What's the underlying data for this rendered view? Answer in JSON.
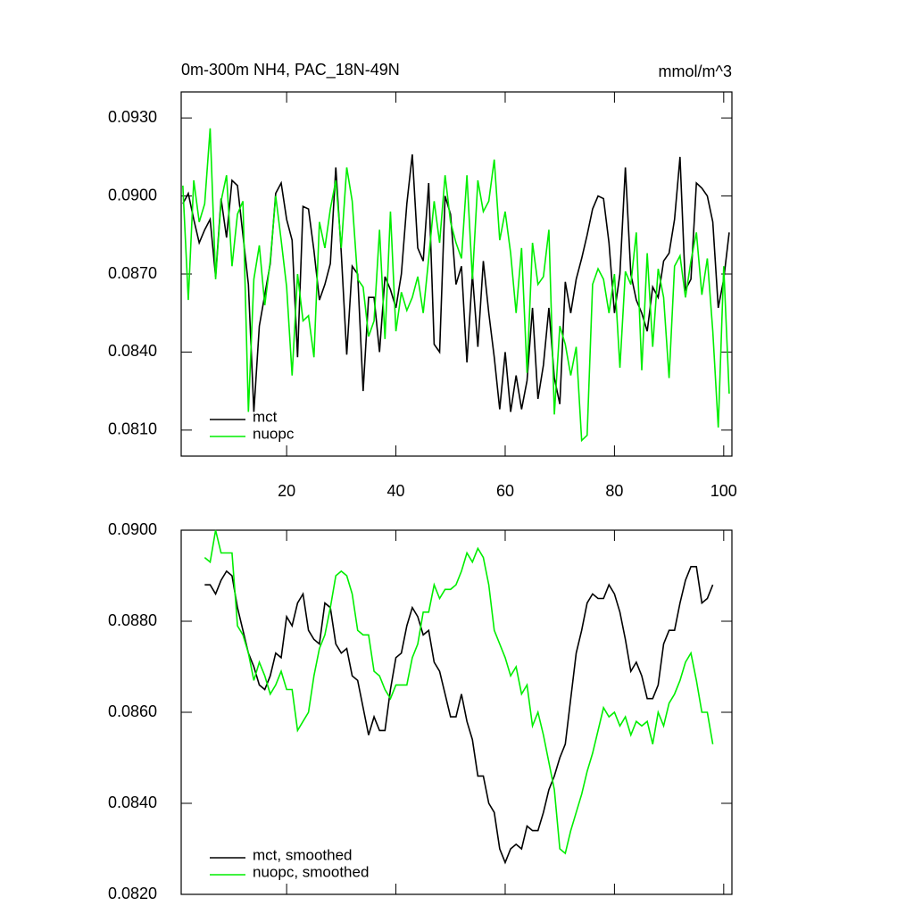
{
  "chart_data": [
    {
      "type": "line",
      "title": "0m-300m NH4, PAC_18N-49N",
      "units": "mmol/m^3",
      "x": [
        1,
        2,
        3,
        4,
        5,
        6,
        7,
        8,
        9,
        10,
        11,
        12,
        13,
        14,
        15,
        16,
        17,
        18,
        19,
        20,
        21,
        22,
        23,
        24,
        25,
        26,
        27,
        28,
        29,
        30,
        31,
        32,
        33,
        34,
        35,
        36,
        37,
        38,
        39,
        40,
        41,
        42,
        43,
        44,
        45,
        46,
        47,
        48,
        49,
        50,
        51,
        52,
        53,
        54,
        55,
        56,
        57,
        58,
        59,
        60,
        61,
        62,
        63,
        64,
        65,
        66,
        67,
        68,
        69,
        70,
        71,
        72,
        73,
        74,
        75,
        76,
        77,
        78,
        79,
        80,
        81,
        82,
        83,
        84,
        85,
        86,
        87,
        88,
        89,
        90,
        91,
        92,
        93,
        94,
        95,
        96,
        97,
        98,
        99,
        100,
        101
      ],
      "series": [
        {
          "name": "mct",
          "color": "#000000",
          "values": [
            0.0897,
            0.0901,
            0.0891,
            0.0882,
            0.0887,
            0.0891,
            0.0869,
            0.0899,
            0.0884,
            0.0906,
            0.0904,
            0.0885,
            0.0866,
            0.0817,
            0.085,
            0.0862,
            0.0874,
            0.0901,
            0.0905,
            0.0891,
            0.0883,
            0.0838,
            0.0896,
            0.0895,
            0.0879,
            0.086,
            0.0866,
            0.0874,
            0.0911,
            0.0878,
            0.0839,
            0.0873,
            0.087,
            0.0825,
            0.0861,
            0.0861,
            0.084,
            0.0869,
            0.0864,
            0.0857,
            0.087,
            0.0897,
            0.0916,
            0.088,
            0.0875,
            0.0905,
            0.0843,
            0.084,
            0.09,
            0.0893,
            0.0866,
            0.0873,
            0.0836,
            0.087,
            0.0842,
            0.0875,
            0.0855,
            0.0838,
            0.0818,
            0.084,
            0.0817,
            0.0831,
            0.0818,
            0.0829,
            0.0857,
            0.0822,
            0.0835,
            0.0857,
            0.083,
            0.082,
            0.0867,
            0.0855,
            0.0868,
            0.0876,
            0.0885,
            0.0895,
            0.09,
            0.0899,
            0.0882,
            0.0855,
            0.087,
            0.0911,
            0.087,
            0.086,
            0.0855,
            0.0848,
            0.0865,
            0.0861,
            0.0875,
            0.0878,
            0.0891,
            0.0915,
            0.0864,
            0.0868,
            0.0905,
            0.0903,
            0.09,
            0.089,
            0.0857,
            0.0868,
            0.0886
          ]
        },
        {
          "name": "nuopc",
          "color": "#00ee00",
          "values": [
            0.0904,
            0.086,
            0.0906,
            0.089,
            0.0897,
            0.0926,
            0.0868,
            0.0898,
            0.0908,
            0.0873,
            0.0893,
            0.0898,
            0.0817,
            0.0868,
            0.0881,
            0.0858,
            0.0875,
            0.09,
            0.0883,
            0.0865,
            0.0831,
            0.087,
            0.0852,
            0.0854,
            0.0838,
            0.089,
            0.088,
            0.0895,
            0.0906,
            0.088,
            0.0911,
            0.0898,
            0.0868,
            0.0865,
            0.0846,
            0.0852,
            0.0887,
            0.0845,
            0.0894,
            0.0848,
            0.0863,
            0.0856,
            0.0861,
            0.0869,
            0.0855,
            0.0876,
            0.0898,
            0.0882,
            0.0908,
            0.089,
            0.0882,
            0.0876,
            0.0908,
            0.0868,
            0.0906,
            0.0894,
            0.0898,
            0.0914,
            0.0883,
            0.0894,
            0.0878,
            0.0855,
            0.088,
            0.0832,
            0.0882,
            0.0866,
            0.0869,
            0.0887,
            0.0816,
            0.085,
            0.0843,
            0.0831,
            0.0842,
            0.0806,
            0.0808,
            0.0866,
            0.0872,
            0.0868,
            0.0855,
            0.087,
            0.0834,
            0.0871,
            0.0866,
            0.0886,
            0.0833,
            0.0878,
            0.0842,
            0.0872,
            0.0861,
            0.083,
            0.0873,
            0.0877,
            0.0861,
            0.0875,
            0.0886,
            0.0862,
            0.0876,
            0.0848,
            0.0811,
            0.0873,
            0.0824
          ]
        }
      ],
      "xlim": [
        0.7,
        101.5
      ],
      "xticks": [
        20,
        40,
        60,
        80,
        100
      ],
      "show_xtick_labels": true,
      "ylim": [
        0.08,
        0.094
      ],
      "yticks": [
        {
          "value": 0.081,
          "label": "0.0810"
        },
        {
          "value": 0.084,
          "label": "0.0840"
        },
        {
          "value": 0.087,
          "label": "0.0870"
        },
        {
          "value": 0.09,
          "label": "0.0900"
        },
        {
          "value": 0.093,
          "label": "0.0930"
        }
      ],
      "legend_loc": "lower left"
    },
    {
      "type": "line",
      "x": [
        5,
        6,
        7,
        8,
        9,
        10,
        11,
        12,
        13,
        14,
        15,
        16,
        17,
        18,
        19,
        20,
        21,
        22,
        23,
        24,
        25,
        26,
        27,
        28,
        29,
        30,
        31,
        32,
        33,
        34,
        35,
        36,
        37,
        38,
        39,
        40,
        41,
        42,
        43,
        44,
        45,
        46,
        47,
        48,
        49,
        50,
        51,
        52,
        53,
        54,
        55,
        56,
        57,
        58,
        59,
        60,
        61,
        62,
        63,
        64,
        65,
        66,
        67,
        68,
        69,
        70,
        71,
        72,
        73,
        74,
        75,
        76,
        77,
        78,
        79,
        80,
        81,
        82,
        83,
        84,
        85,
        86,
        87,
        88,
        89,
        90,
        91,
        92,
        93,
        94,
        95,
        96,
        97,
        98
      ],
      "series": [
        {
          "name": "mct, smoothed",
          "color": "#000000",
          "values": [
            0.0888,
            0.0888,
            0.0886,
            0.0889,
            0.0891,
            0.089,
            0.0883,
            0.0878,
            0.0873,
            0.087,
            0.0866,
            0.0865,
            0.0868,
            0.0873,
            0.0872,
            0.0881,
            0.0879,
            0.0884,
            0.0886,
            0.0878,
            0.0876,
            0.0875,
            0.0884,
            0.0883,
            0.0875,
            0.0873,
            0.0874,
            0.0868,
            0.0867,
            0.0861,
            0.0855,
            0.0859,
            0.0856,
            0.0856,
            0.0865,
            0.0872,
            0.0873,
            0.0879,
            0.0883,
            0.0881,
            0.0877,
            0.0878,
            0.0871,
            0.0869,
            0.0864,
            0.0859,
            0.0859,
            0.0864,
            0.0858,
            0.0854,
            0.0846,
            0.0846,
            0.084,
            0.0838,
            0.083,
            0.0827,
            0.083,
            0.0831,
            0.083,
            0.0835,
            0.0834,
            0.0834,
            0.0838,
            0.0843,
            0.0846,
            0.085,
            0.0853,
            0.0863,
            0.0873,
            0.0878,
            0.0884,
            0.0886,
            0.0885,
            0.0885,
            0.0888,
            0.0886,
            0.0882,
            0.0876,
            0.0869,
            0.0871,
            0.0868,
            0.0863,
            0.0863,
            0.0866,
            0.0875,
            0.0878,
            0.0878,
            0.0884,
            0.0889,
            0.0892,
            0.0892,
            0.0884,
            0.0885,
            0.0888
          ]
        },
        {
          "name": "nuopc, smoothed",
          "color": "#00ee00",
          "values": [
            0.0894,
            0.0893,
            0.09,
            0.0895,
            0.0895,
            0.0895,
            0.0879,
            0.0877,
            0.0873,
            0.0867,
            0.0871,
            0.0868,
            0.0864,
            0.0866,
            0.0869,
            0.0865,
            0.0865,
            0.0856,
            0.0858,
            0.086,
            0.0868,
            0.0874,
            0.0877,
            0.0883,
            0.089,
            0.0891,
            0.089,
            0.0886,
            0.0878,
            0.0877,
            0.0877,
            0.0869,
            0.0868,
            0.0865,
            0.0863,
            0.0866,
            0.0866,
            0.0866,
            0.0872,
            0.0875,
            0.0882,
            0.0882,
            0.0888,
            0.0885,
            0.0887,
            0.0887,
            0.0888,
            0.0891,
            0.0895,
            0.0893,
            0.0896,
            0.0894,
            0.0888,
            0.0878,
            0.0875,
            0.0872,
            0.0868,
            0.087,
            0.0864,
            0.0866,
            0.0857,
            0.086,
            0.0855,
            0.0849,
            0.0843,
            0.083,
            0.0829,
            0.0834,
            0.0838,
            0.0842,
            0.0847,
            0.0851,
            0.0856,
            0.0861,
            0.0859,
            0.086,
            0.0857,
            0.0859,
            0.0855,
            0.0858,
            0.0857,
            0.0858,
            0.0853,
            0.086,
            0.0857,
            0.0862,
            0.0864,
            0.0867,
            0.0871,
            0.0873,
            0.0867,
            0.086,
            0.086,
            0.0853
          ]
        }
      ],
      "xlim": [
        0.7,
        101.5
      ],
      "xticks": [
        20,
        40,
        60,
        80,
        100
      ],
      "show_xtick_labels": false,
      "ylim": [
        0.082,
        0.09
      ],
      "yticks": [
        {
          "value": 0.082,
          "label": "0.0820"
        },
        {
          "value": 0.084,
          "label": "0.0840"
        },
        {
          "value": 0.086,
          "label": "0.0860"
        },
        {
          "value": 0.088,
          "label": "0.0880"
        },
        {
          "value": 0.09,
          "label": "0.0900"
        }
      ],
      "legend_loc": "lower left"
    }
  ]
}
